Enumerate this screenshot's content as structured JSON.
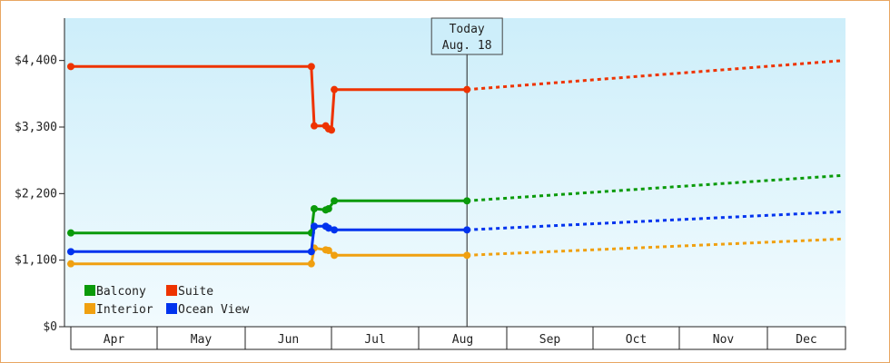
{
  "chart_data": {
    "type": "line",
    "title": "",
    "xlabel": "",
    "ylabel": "",
    "months": [
      "Apr",
      "May",
      "Jun",
      "Jul",
      "Aug",
      "Sep",
      "Oct",
      "Nov",
      "Dec"
    ],
    "y_ticks": [
      {
        "value": 0,
        "label": "$0"
      },
      {
        "value": 1100,
        "label": "$1,100"
      },
      {
        "value": 2200,
        "label": "$2,200"
      },
      {
        "value": 3300,
        "label": "$3,300"
      },
      {
        "value": 4400,
        "label": "$4,400"
      }
    ],
    "ylim": [
      0,
      5100
    ],
    "today": {
      "line1": "Today",
      "line2": "Aug. 18",
      "date": "08-18"
    },
    "grid": false,
    "legend_position": "bottom-left",
    "series": [
      {
        "name": "Balcony",
        "color": "#0a9a0a",
        "points": [
          [
            "04-01",
            1550
          ],
          [
            "06-24",
            1550
          ],
          [
            "06-25",
            1950
          ],
          [
            "06-29",
            1930
          ],
          [
            "06-30",
            1950
          ],
          [
            "07-02",
            2080
          ],
          [
            "08-18",
            2080
          ]
        ],
        "forecast": [
          [
            "08-18",
            2080
          ],
          [
            "12-31",
            2500
          ]
        ]
      },
      {
        "name": "Suite",
        "color": "#ee3300",
        "points": [
          [
            "04-01",
            4300
          ],
          [
            "06-24",
            4300
          ],
          [
            "06-25",
            3320
          ],
          [
            "06-29",
            3320
          ],
          [
            "06-30",
            3270
          ],
          [
            "07-01",
            3250
          ],
          [
            "07-02",
            3920
          ],
          [
            "08-18",
            3920
          ]
        ],
        "forecast": [
          [
            "08-18",
            3920
          ],
          [
            "12-31",
            4400
          ]
        ]
      },
      {
        "name": "Interior",
        "color": "#f0a010",
        "points": [
          [
            "04-01",
            1040
          ],
          [
            "06-24",
            1040
          ],
          [
            "06-25",
            1300
          ],
          [
            "06-29",
            1270
          ],
          [
            "06-30",
            1260
          ],
          [
            "07-02",
            1180
          ],
          [
            "08-18",
            1180
          ]
        ],
        "forecast": [
          [
            "08-18",
            1180
          ],
          [
            "12-31",
            1450
          ]
        ]
      },
      {
        "name": "Ocean View",
        "color": "#0033ee",
        "points": [
          [
            "04-01",
            1240
          ],
          [
            "06-24",
            1240
          ],
          [
            "06-25",
            1660
          ],
          [
            "06-29",
            1660
          ],
          [
            "06-30",
            1630
          ],
          [
            "07-02",
            1600
          ],
          [
            "08-18",
            1600
          ]
        ],
        "forecast": [
          [
            "08-18",
            1600
          ],
          [
            "12-31",
            1900
          ]
        ]
      }
    ],
    "legend": [
      {
        "name": "Balcony",
        "color": "#0a9a0a"
      },
      {
        "name": "Suite",
        "color": "#ee3300"
      },
      {
        "name": "Interior",
        "color": "#f0a010"
      },
      {
        "name": "Ocean View",
        "color": "#0033ee"
      }
    ]
  }
}
